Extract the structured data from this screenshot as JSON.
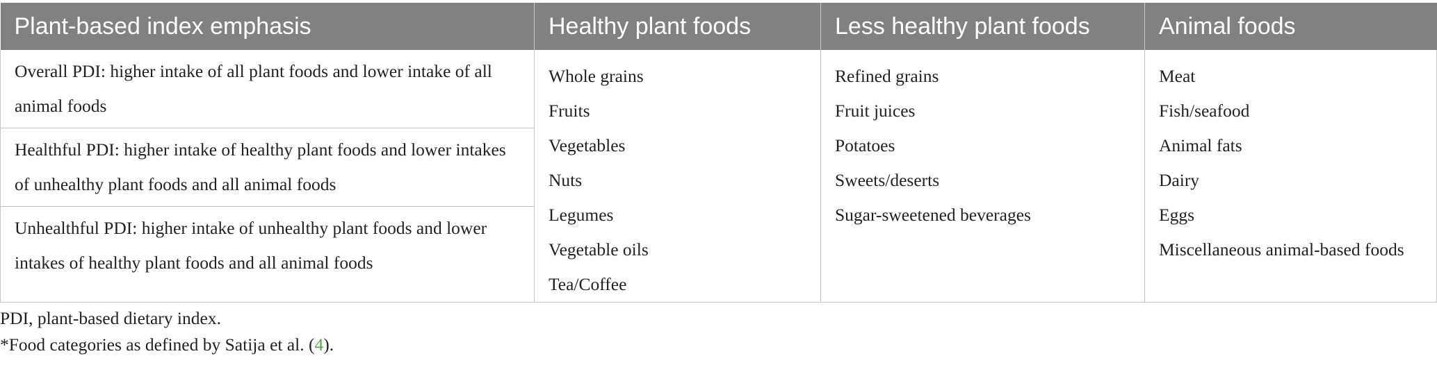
{
  "table": {
    "headers": [
      "Plant-based index emphasis",
      "Healthy plant foods",
      "Less healthy plant foods",
      "Animal foods"
    ],
    "index_emphasis": [
      "Overall PDI: higher intake of all plant foods and lower intake of all animal foods",
      "Healthful PDI: higher intake of healthy plant foods and lower intakes of unhealthy plant foods and all animal foods",
      "Unhealthful PDI: higher intake of unhealthy plant foods and lower intakes of healthy plant foods and all animal foods"
    ],
    "healthy_plant_foods": [
      "Whole grains",
      "Fruits",
      "Vegetables",
      "Nuts",
      "Legumes",
      "Vegetable oils",
      "Tea/Coffee"
    ],
    "less_healthy_plant_foods": [
      "Refined grains",
      "Fruit juices",
      "Potatoes",
      "Sweets/deserts",
      "Sugar-sweetened beverages"
    ],
    "animal_foods": [
      "Meat",
      "Fish/seafood",
      "Animal fats",
      "Dairy",
      "Eggs",
      "Miscellaneous animal-based foods"
    ]
  },
  "footnotes": {
    "abbrev": "PDI, plant-based dietary index.",
    "source_prefix": "*Food categories as defined by Satija et al. (",
    "source_ref": "4",
    "source_suffix": ")."
  }
}
